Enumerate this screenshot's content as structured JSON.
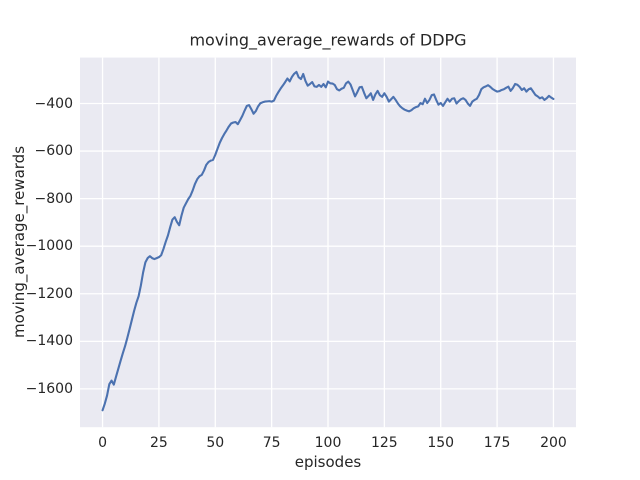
{
  "chart_data": {
    "type": "line",
    "title": "moving_average_rewards of DDPG",
    "xlabel": "episodes",
    "ylabel": "moving_average_rewards",
    "grid": true,
    "legend": "none",
    "xlim": [
      -10,
      210
    ],
    "ylim": [
      -1761,
      -207
    ],
    "xticks": [
      {
        "value": 0,
        "label": "0"
      },
      {
        "value": 25,
        "label": "25"
      },
      {
        "value": 50,
        "label": "50"
      },
      {
        "value": 75,
        "label": "75"
      },
      {
        "value": 100,
        "label": "100"
      },
      {
        "value": 125,
        "label": "125"
      },
      {
        "value": 150,
        "label": "150"
      },
      {
        "value": 175,
        "label": "175"
      },
      {
        "value": 200,
        "label": "200"
      }
    ],
    "yticks": [
      {
        "value": -400,
        "label": "−400"
      },
      {
        "value": -600,
        "label": "−600"
      },
      {
        "value": -800,
        "label": "−800"
      },
      {
        "value": -1000,
        "label": "−1000"
      },
      {
        "value": -1200,
        "label": "−1200"
      },
      {
        "value": -1400,
        "label": "−1400"
      },
      {
        "value": -1600,
        "label": "−1600"
      }
    ],
    "series": [
      {
        "x_start": 0,
        "x_step": 1,
        "values": [
          -1690,
          -1662,
          -1628,
          -1580,
          -1565,
          -1582,
          -1548,
          -1515,
          -1482,
          -1450,
          -1420,
          -1385,
          -1348,
          -1310,
          -1272,
          -1238,
          -1210,
          -1165,
          -1110,
          -1068,
          -1050,
          -1042,
          -1050,
          -1054,
          -1050,
          -1046,
          -1038,
          -1012,
          -982,
          -955,
          -920,
          -888,
          -878,
          -898,
          -912,
          -872,
          -838,
          -820,
          -802,
          -788,
          -765,
          -738,
          -718,
          -706,
          -700,
          -682,
          -658,
          -646,
          -640,
          -637,
          -616,
          -590,
          -565,
          -545,
          -528,
          -513,
          -497,
          -484,
          -480,
          -478,
          -487,
          -470,
          -452,
          -430,
          -410,
          -407,
          -424,
          -443,
          -432,
          -412,
          -399,
          -395,
          -392,
          -391,
          -390,
          -392,
          -388,
          -368,
          -352,
          -337,
          -324,
          -310,
          -295,
          -307,
          -288,
          -275,
          -267,
          -290,
          -297,
          -276,
          -305,
          -325,
          -318,
          -310,
          -328,
          -330,
          -322,
          -330,
          -318,
          -332,
          -308,
          -315,
          -316,
          -322,
          -340,
          -345,
          -338,
          -334,
          -315,
          -308,
          -320,
          -345,
          -370,
          -352,
          -332,
          -330,
          -355,
          -378,
          -368,
          -357,
          -385,
          -362,
          -347,
          -365,
          -372,
          -357,
          -372,
          -392,
          -382,
          -372,
          -385,
          -400,
          -412,
          -420,
          -426,
          -430,
          -433,
          -428,
          -420,
          -415,
          -412,
          -398,
          -403,
          -380,
          -398,
          -385,
          -365,
          -362,
          -385,
          -405,
          -398,
          -410,
          -395,
          -380,
          -392,
          -380,
          -378,
          -400,
          -390,
          -382,
          -378,
          -385,
          -400,
          -410,
          -392,
          -385,
          -380,
          -364,
          -340,
          -332,
          -328,
          -323,
          -330,
          -339,
          -345,
          -350,
          -348,
          -343,
          -340,
          -334,
          -329,
          -347,
          -335,
          -318,
          -321,
          -330,
          -343,
          -336,
          -350,
          -340,
          -336,
          -350,
          -364,
          -370,
          -378,
          -374,
          -385,
          -378,
          -368,
          -375,
          -381
        ]
      }
    ],
    "colors": {
      "line": "#4c72b0",
      "axes_background": "#eaeaf2",
      "grid": "#ffffff",
      "text": "#262626",
      "figure_background": "#ffffff"
    }
  }
}
